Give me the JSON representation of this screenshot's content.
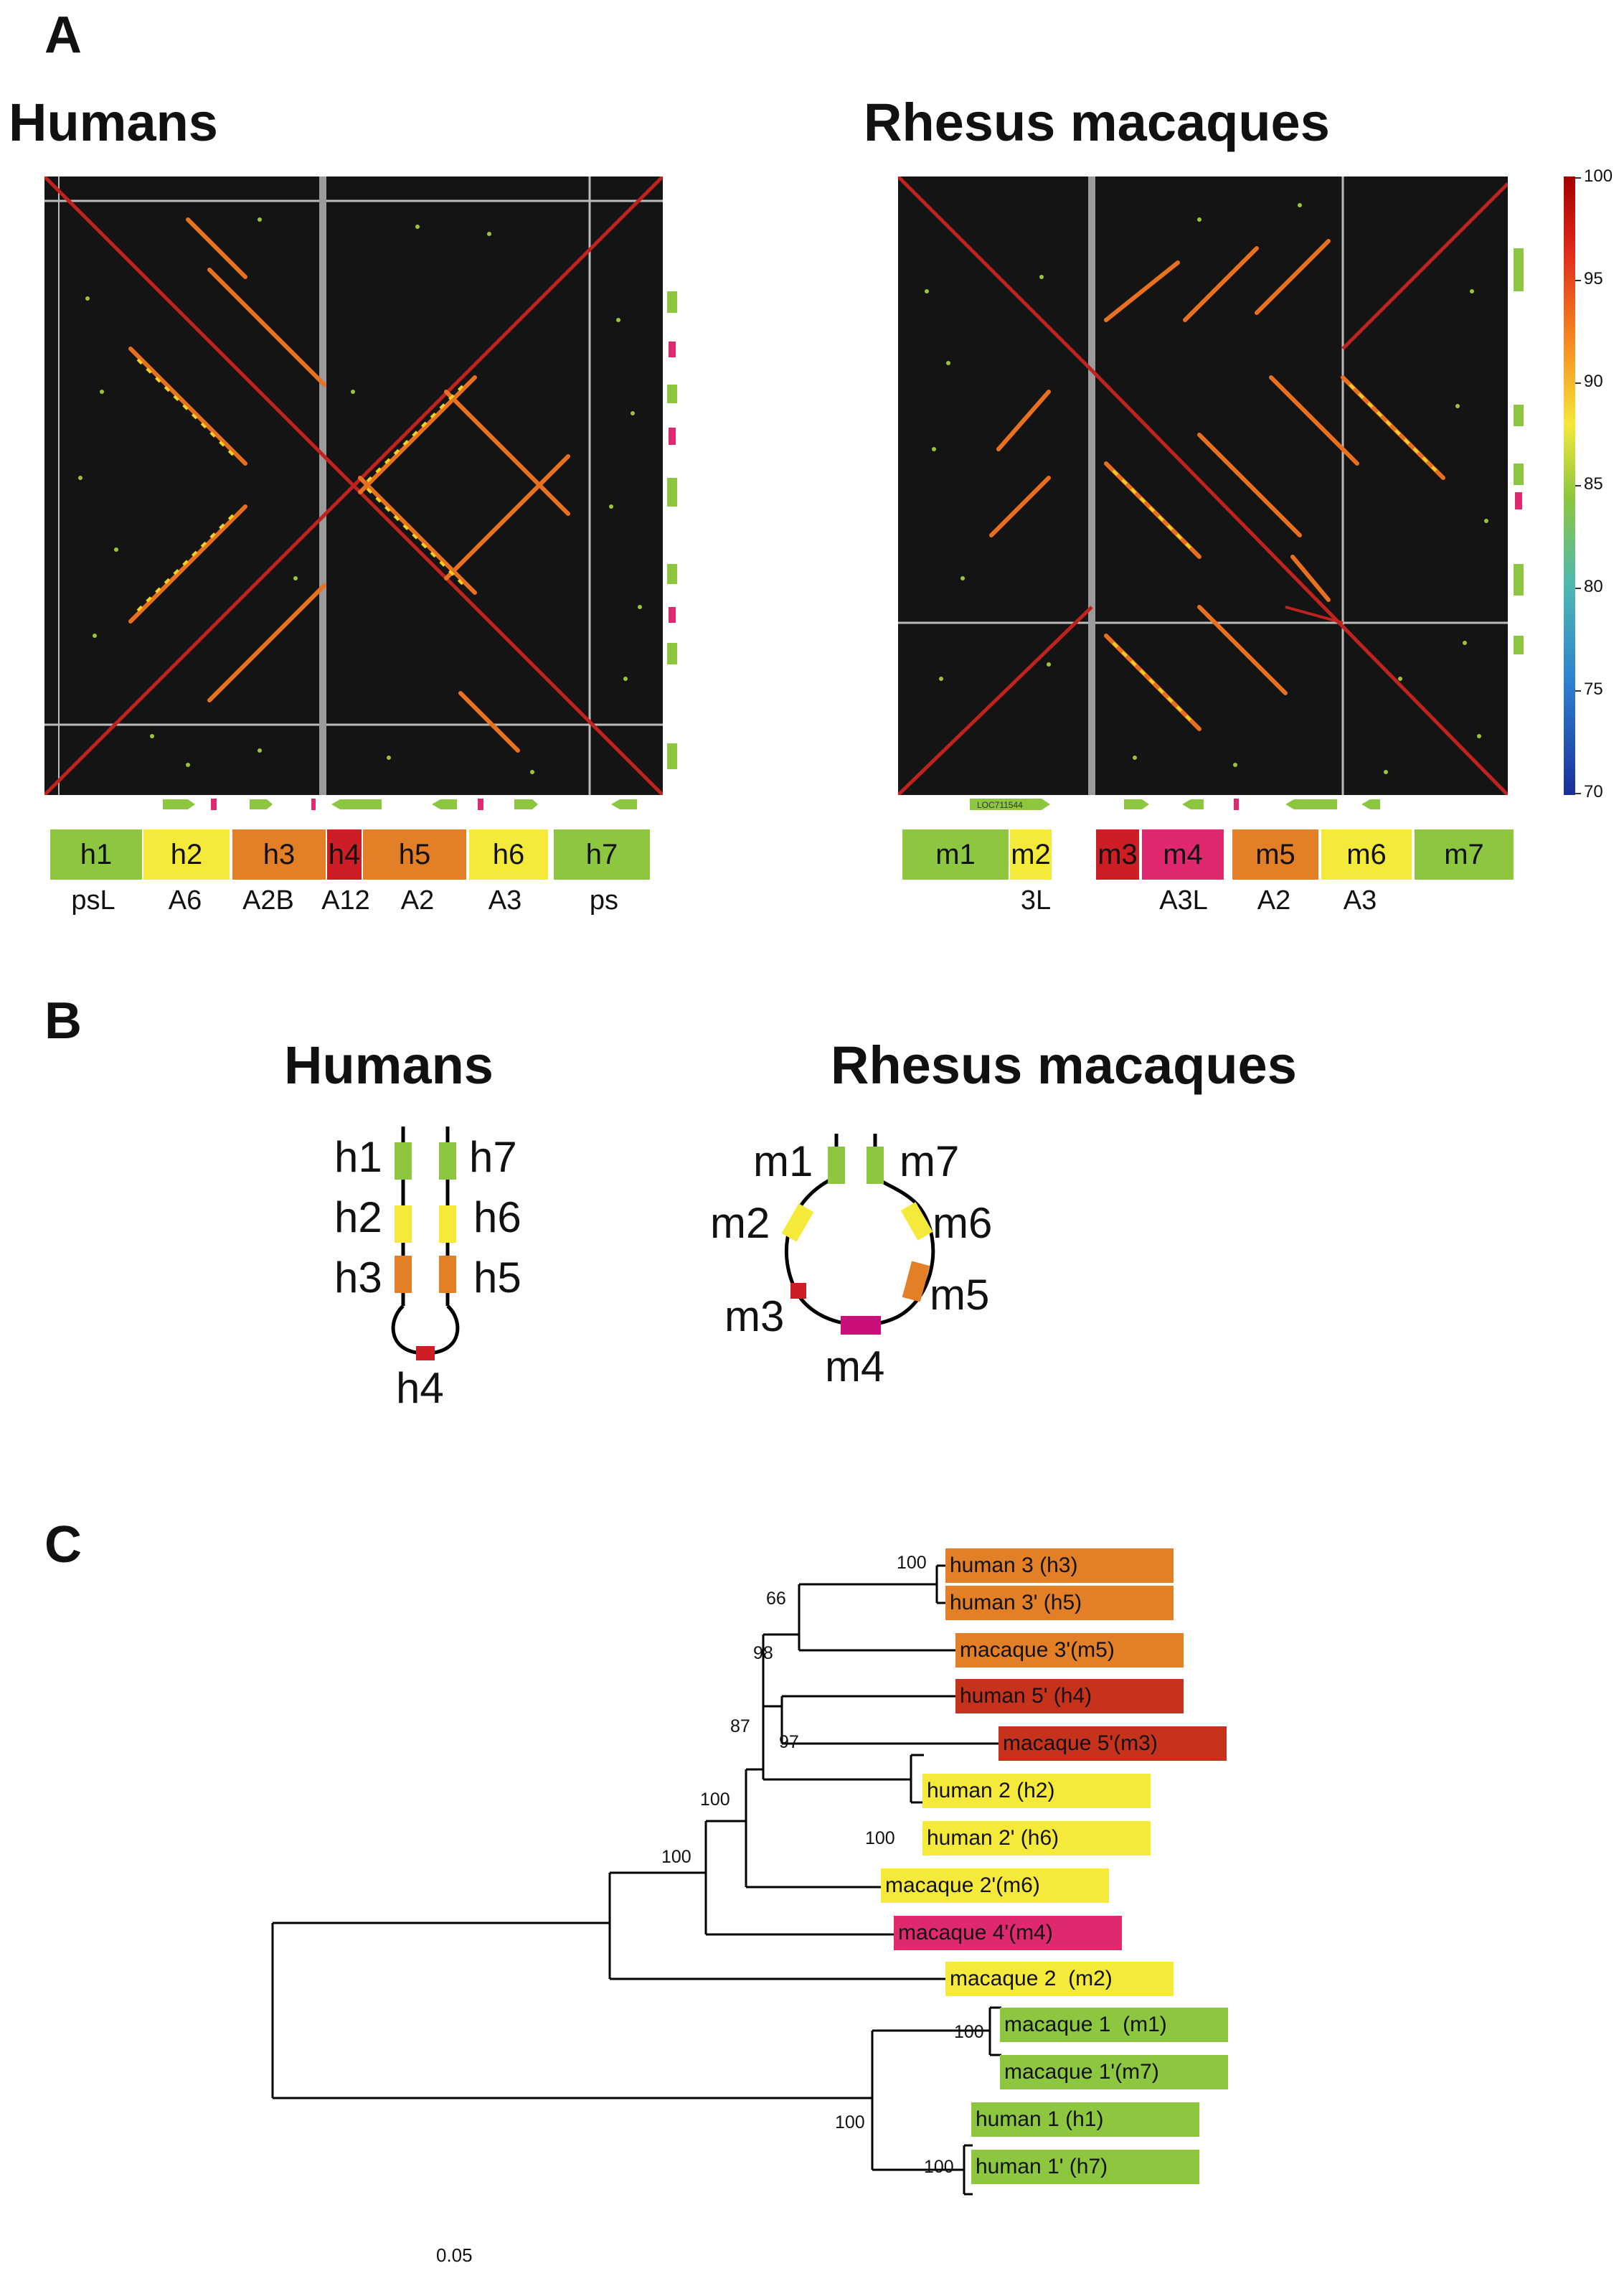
{
  "colors": {
    "green": "#8dc63f",
    "yellow": "#f5ea3a",
    "orange": "#e37f26",
    "red": "#cc1e24",
    "magenta": "#e0286e",
    "darkred": "#c7321d",
    "background_plot": "#141414"
  },
  "panelA": {
    "letter": "A",
    "human_title": "Humans",
    "macaque_title": "Rhesus macaques",
    "colorbar": {
      "ticks": [
        "100",
        "95",
        "90",
        "85",
        "80",
        "75",
        "70"
      ]
    },
    "human_segments": [
      {
        "label": "h1",
        "color": "green"
      },
      {
        "label": "h2",
        "color": "yellow"
      },
      {
        "label": "h3",
        "color": "orange"
      },
      {
        "label": "h4",
        "color": "red"
      },
      {
        "label": "h5",
        "color": "orange"
      },
      {
        "label": "h6",
        "color": "yellow"
      },
      {
        "label": "h7",
        "color": "green"
      }
    ],
    "human_genes": [
      "psL",
      "A6",
      "A2B",
      "A12",
      "A2",
      "A3",
      "ps"
    ],
    "macaque_segments": [
      {
        "label": "m1",
        "color": "green"
      },
      {
        "label": "m2",
        "color": "yellow"
      },
      {
        "label": "m3",
        "color": "red"
      },
      {
        "label": "m4",
        "color": "magenta"
      },
      {
        "label": "m5",
        "color": "orange"
      },
      {
        "label": "m6",
        "color": "yellow"
      },
      {
        "label": "m7",
        "color": "green"
      }
    ],
    "macaque_genes": [
      "3L",
      "A3L",
      "A2",
      "A3"
    ],
    "macaque_track_label": "LOC711544"
  },
  "panelB": {
    "letter": "B",
    "human_title": "Humans",
    "macaque_title": "Rhesus macaques",
    "human_labels": [
      "h1",
      "h7",
      "h2",
      "h6",
      "h3",
      "h5",
      "h4"
    ],
    "macaque_labels": [
      "m1",
      "m7",
      "m2",
      "m6",
      "m5",
      "m3",
      "m4"
    ]
  },
  "panelC": {
    "letter": "C",
    "scale_label": "0.05",
    "leaves": [
      {
        "label": "human 3 (h3)",
        "color": "orange"
      },
      {
        "label": "human 3' (h5)",
        "color": "orange"
      },
      {
        "label": "macaque 3'(m5)",
        "color": "orange"
      },
      {
        "label": "human 5' (h4)",
        "color": "darkred"
      },
      {
        "label": "macaque 5'(m3)",
        "color": "darkred"
      },
      {
        "label": "human 2 (h2)",
        "color": "yellow"
      },
      {
        "label": "human 2' (h6)",
        "color": "yellow"
      },
      {
        "label": "macaque 2'(m6)",
        "color": "yellow"
      },
      {
        "label": "macaque 4'(m4)",
        "color": "magenta"
      },
      {
        "label": "macaque 2  (m2)",
        "color": "yellow"
      },
      {
        "label": "macaque 1  (m1)",
        "color": "green"
      },
      {
        "label": "macaque 1'(m7)",
        "color": "green"
      },
      {
        "label": "human 1 (h1)",
        "color": "green"
      },
      {
        "label": "human 1' (h7)",
        "color": "green"
      }
    ],
    "bootstrap": [
      "100",
      "66",
      "98",
      "87",
      "97",
      "100",
      "100",
      "100",
      "100",
      "100",
      "100"
    ]
  }
}
